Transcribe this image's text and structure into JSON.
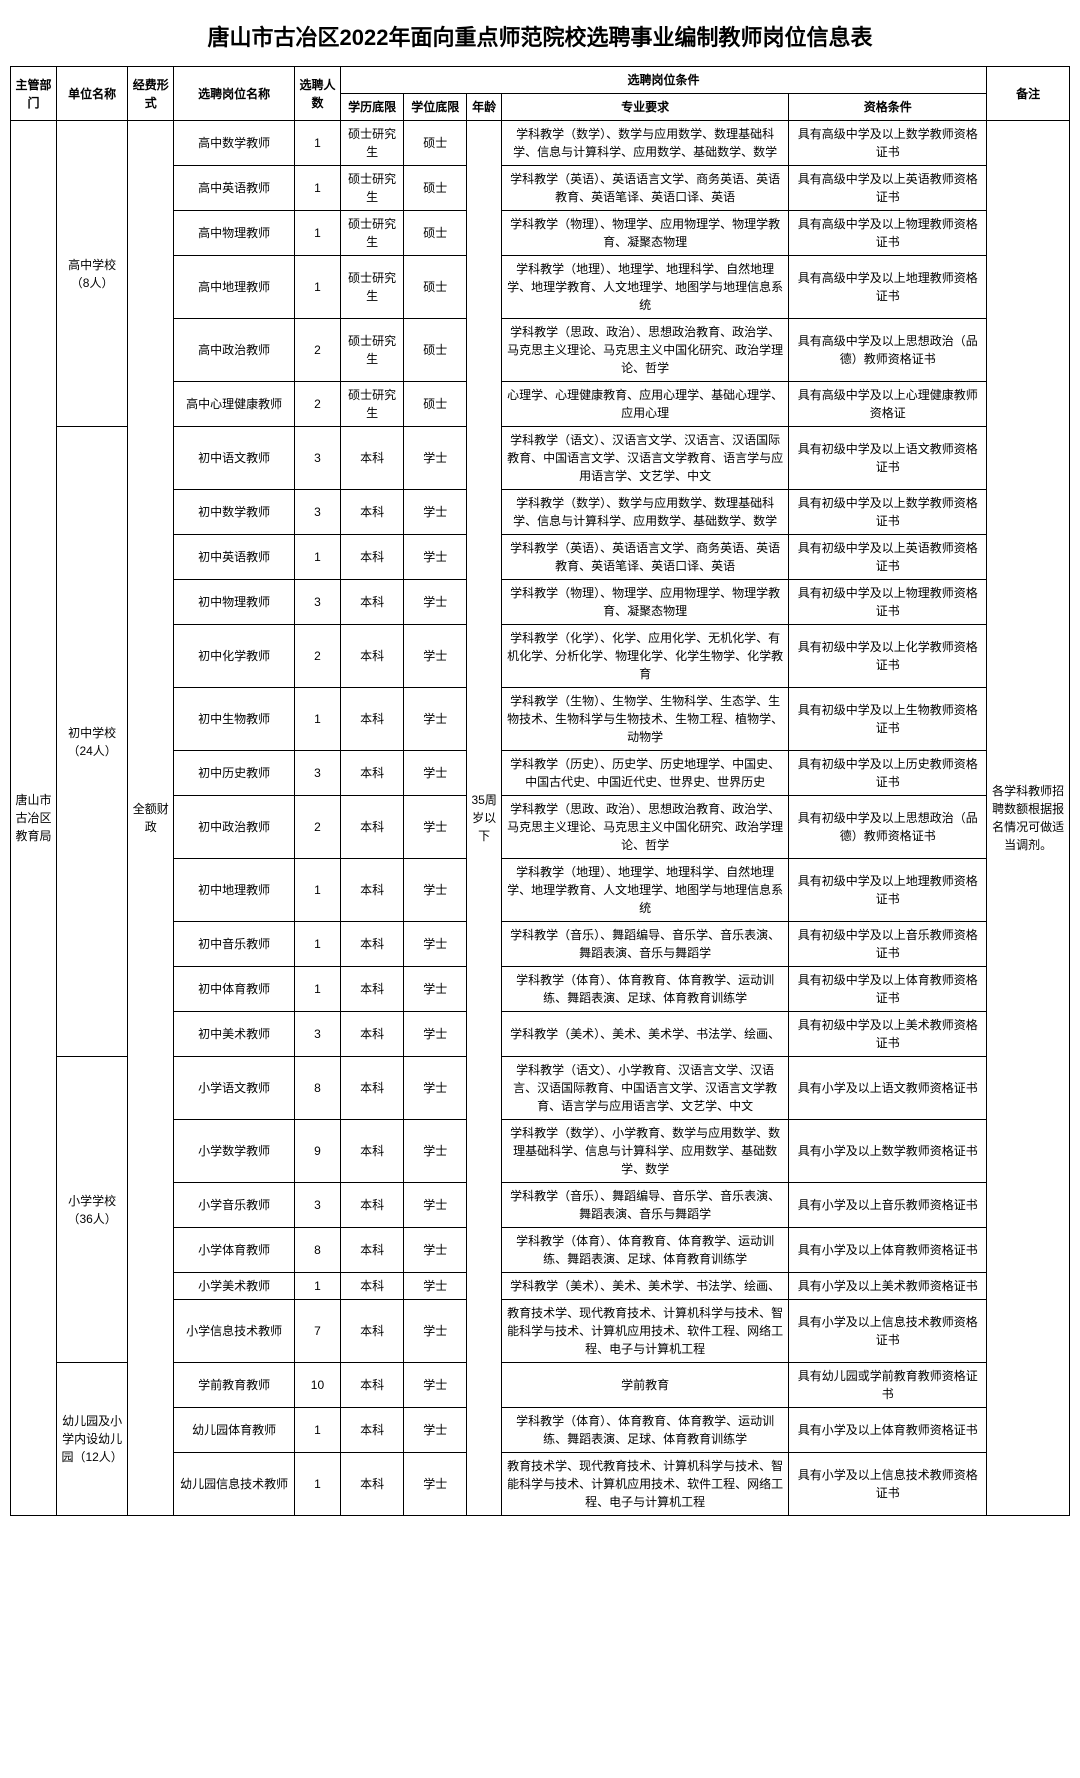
{
  "title": "唐山市古冶区2022年面向重点师范院校选聘事业编制教师岗位信息表",
  "headers": {
    "dept": "主管部门",
    "unit": "单位名称",
    "fund": "经费形式",
    "posname": "选聘岗位名称",
    "count": "选聘人数",
    "cond_group": "选聘岗位条件",
    "edu": "学历底限",
    "deg": "学位底限",
    "age": "年龄",
    "major": "专业要求",
    "qual": "资格条件",
    "note": "备注"
  },
  "dept": "唐山市古冶区教育局",
  "fund": "全额财政",
  "age": "35周岁以下",
  "note": "各学科教师招聘数额根据报名情况可做适当调剂。",
  "units": [
    {
      "label": "高中学校（8人）",
      "rowspan": 6
    },
    {
      "label": "初中学校（24人）",
      "rowspan": 12
    },
    {
      "label": "小学学校（36人）",
      "rowspan": 6
    },
    {
      "label": "幼儿园及小学内设幼儿园（12人）",
      "rowspan": 3
    }
  ],
  "rows": [
    {
      "pos": "高中数学教师",
      "cnt": "1",
      "edu": "硕士研究生",
      "deg": "硕士",
      "major": "学科教学（数学）、数学与应用数学、数理基础科学、信息与计算科学、应用数学、基础数学、数学",
      "qual": "具有高级中学及以上数学教师资格证书"
    },
    {
      "pos": "高中英语教师",
      "cnt": "1",
      "edu": "硕士研究生",
      "deg": "硕士",
      "major": "学科教学（英语）、英语语言文学、商务英语、英语教育、英语笔译、英语口译、英语",
      "qual": "具有高级中学及以上英语教师资格证书"
    },
    {
      "pos": "高中物理教师",
      "cnt": "1",
      "edu": "硕士研究生",
      "deg": "硕士",
      "major": "学科教学（物理）、物理学、应用物理学、物理学教育、凝聚态物理",
      "qual": "具有高级中学及以上物理教师资格证书"
    },
    {
      "pos": "高中地理教师",
      "cnt": "1",
      "edu": "硕士研究生",
      "deg": "硕士",
      "major": "学科教学（地理）、地理学、地理科学、自然地理学、地理学教育、人文地理学、地图学与地理信息系统",
      "qual": "具有高级中学及以上地理教师资格证书"
    },
    {
      "pos": "高中政治教师",
      "cnt": "2",
      "edu": "硕士研究生",
      "deg": "硕士",
      "major": "学科教学（思政、政治）、思想政治教育、政治学、马克思主义理论、马克思主义中国化研究、政治学理论、哲学",
      "qual": "具有高级中学及以上思想政治（品德）教师资格证书"
    },
    {
      "pos": "高中心理健康教师",
      "cnt": "2",
      "edu": "硕士研究生",
      "deg": "硕士",
      "major": "心理学、心理健康教育、应用心理学、基础心理学、应用心理",
      "qual": "具有高级中学及以上心理健康教师资格证"
    },
    {
      "pos": "初中语文教师",
      "cnt": "3",
      "edu": "本科",
      "deg": "学士",
      "major": "学科教学（语文）、汉语言文学、汉语言、汉语国际教育、中国语言文学、汉语言文学教育、语言学与应用语言学、文艺学、中文",
      "qual": "具有初级中学及以上语文教师资格证书"
    },
    {
      "pos": "初中数学教师",
      "cnt": "3",
      "edu": "本科",
      "deg": "学士",
      "major": "学科教学（数学）、数学与应用数学、数理基础科学、信息与计算科学、应用数学、基础数学、数学",
      "qual": "具有初级中学及以上数学教师资格证书"
    },
    {
      "pos": "初中英语教师",
      "cnt": "1",
      "edu": "本科",
      "deg": "学士",
      "major": "学科教学（英语）、英语语言文学、商务英语、英语教育、英语笔译、英语口译、英语",
      "qual": "具有初级中学及以上英语教师资格证书"
    },
    {
      "pos": "初中物理教师",
      "cnt": "3",
      "edu": "本科",
      "deg": "学士",
      "major": "学科教学（物理）、物理学、应用物理学、物理学教育、凝聚态物理",
      "qual": "具有初级中学及以上物理教师资格证书"
    },
    {
      "pos": "初中化学教师",
      "cnt": "2",
      "edu": "本科",
      "deg": "学士",
      "major": "学科教学（化学）、化学、应用化学、无机化学、有机化学、分析化学、物理化学、化学生物学、化学教育",
      "qual": "具有初级中学及以上化学教师资格证书"
    },
    {
      "pos": "初中生物教师",
      "cnt": "1",
      "edu": "本科",
      "deg": "学士",
      "major": "学科教学（生物）、生物学、生物科学、生态学、生物技术、生物科学与生物技术、生物工程、植物学、动物学",
      "qual": "具有初级中学及以上生物教师资格证书"
    },
    {
      "pos": "初中历史教师",
      "cnt": "3",
      "edu": "本科",
      "deg": "学士",
      "major": "学科教学（历史）、历史学、历史地理学、中国史、中国古代史、中国近代史、世界史、世界历史",
      "qual": "具有初级中学及以上历史教师资格证书"
    },
    {
      "pos": "初中政治教师",
      "cnt": "2",
      "edu": "本科",
      "deg": "学士",
      "major": "学科教学（思政、政治）、思想政治教育、政治学、马克思主义理论、马克思主义中国化研究、政治学理论、哲学",
      "qual": "具有初级中学及以上思想政治（品德）教师资格证书"
    },
    {
      "pos": "初中地理教师",
      "cnt": "1",
      "edu": "本科",
      "deg": "学士",
      "major": "学科教学（地理）、地理学、地理科学、自然地理学、地理学教育、人文地理学、地图学与地理信息系统",
      "qual": "具有初级中学及以上地理教师资格证书"
    },
    {
      "pos": "初中音乐教师",
      "cnt": "1",
      "edu": "本科",
      "deg": "学士",
      "major": "学科教学（音乐）、舞蹈编导、音乐学、音乐表演、舞蹈表演、音乐与舞蹈学",
      "qual": "具有初级中学及以上音乐教师资格证书"
    },
    {
      "pos": "初中体育教师",
      "cnt": "1",
      "edu": "本科",
      "deg": "学士",
      "major": "学科教学（体育）、体育教育、体育教学、运动训练、舞蹈表演、足球、体育教育训练学",
      "qual": "具有初级中学及以上体育教师资格证书"
    },
    {
      "pos": "初中美术教师",
      "cnt": "3",
      "edu": "本科",
      "deg": "学士",
      "major": "学科教学（美术）、美术、美术学、书法学、绘画、",
      "qual": "具有初级中学及以上美术教师资格证书"
    },
    {
      "pos": "小学语文教师",
      "cnt": "8",
      "edu": "本科",
      "deg": "学士",
      "major": "学科教学（语文）、小学教育、汉语言文学、汉语言、汉语国际教育、中国语言文学、汉语言文学教育、语言学与应用语言学、文艺学、中文",
      "qual": "具有小学及以上语文教师资格证书"
    },
    {
      "pos": "小学数学教师",
      "cnt": "9",
      "edu": "本科",
      "deg": "学士",
      "major": "学科教学（数学）、小学教育、数学与应用数学、数理基础科学、信息与计算科学、应用数学、基础数学、数学",
      "qual": "具有小学及以上数学教师资格证书"
    },
    {
      "pos": "小学音乐教师",
      "cnt": "3",
      "edu": "本科",
      "deg": "学士",
      "major": "学科教学（音乐）、舞蹈编导、音乐学、音乐表演、舞蹈表演、音乐与舞蹈学",
      "qual": "具有小学及以上音乐教师资格证书"
    },
    {
      "pos": "小学体育教师",
      "cnt": "8",
      "edu": "本科",
      "deg": "学士",
      "major": "学科教学（体育）、体育教育、体育教学、运动训练、舞蹈表演、足球、体育教育训练学",
      "qual": "具有小学及以上体育教师资格证书"
    },
    {
      "pos": "小学美术教师",
      "cnt": "1",
      "edu": "本科",
      "deg": "学士",
      "major": "学科教学（美术）、美术、美术学、书法学、绘画、",
      "qual": "具有小学及以上美术教师资格证书"
    },
    {
      "pos": "小学信息技术教师",
      "cnt": "7",
      "edu": "本科",
      "deg": "学士",
      "major": "教育技术学、现代教育技术、计算机科学与技术、智能科学与技术、计算机应用技术、软件工程、网络工程、电子与计算机工程",
      "qual": "具有小学及以上信息技术教师资格证书"
    },
    {
      "pos": "学前教育教师",
      "cnt": "10",
      "edu": "本科",
      "deg": "学士",
      "major": "学前教育",
      "qual": "具有幼儿园或学前教育教师资格证书"
    },
    {
      "pos": "幼儿园体育教师",
      "cnt": "1",
      "edu": "本科",
      "deg": "学士",
      "major": "学科教学（体育）、体育教育、体育教学、运动训练、舞蹈表演、足球、体育教育训练学",
      "qual": "具有小学及以上体育教师资格证书"
    },
    {
      "pos": "幼儿园信息技术教师",
      "cnt": "1",
      "edu": "本科",
      "deg": "学士",
      "major": "教育技术学、现代教育技术、计算机科学与技术、智能科学与技术、计算机应用技术、软件工程、网络工程、电子与计算机工程",
      "qual": "具有小学及以上信息技术教师资格证书"
    }
  ]
}
